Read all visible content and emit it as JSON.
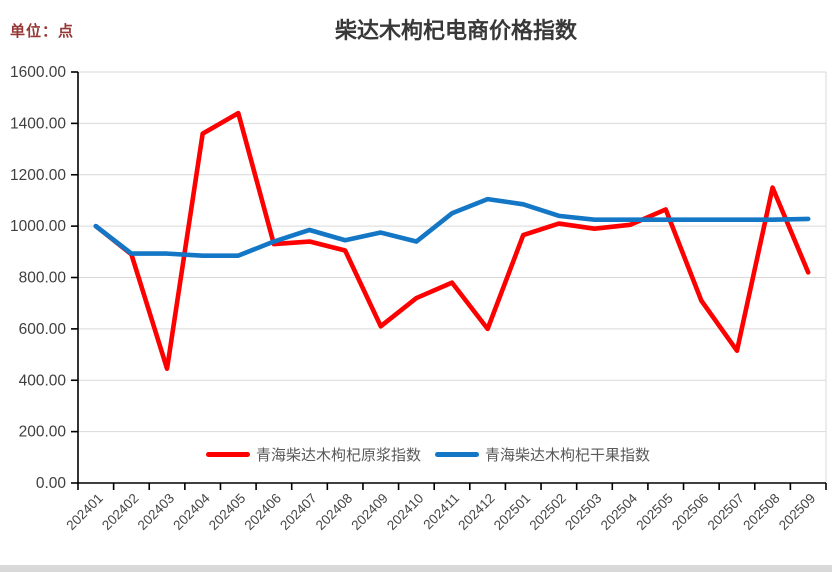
{
  "unit_label": "单位：点",
  "title": "柴达木枸杞电商价格指数",
  "chart_data": {
    "type": "line",
    "title": "柴达木枸杞电商价格指数",
    "unit": "点",
    "categories": [
      "202401",
      "202402",
      "202403",
      "202404",
      "202405",
      "202406",
      "202407",
      "202408",
      "202409",
      "202410",
      "202411",
      "202412",
      "202501",
      "202502",
      "202503",
      "202504",
      "202505",
      "202506",
      "202507",
      "202508",
      "202509"
    ],
    "series": [
      {
        "name": "青海柴达木枸杞原浆指数",
        "color": "#FE0000",
        "values": [
          1000,
          890,
          445,
          1360,
          1440,
          930,
          940,
          905,
          610,
          720,
          780,
          600,
          965,
          1010,
          990,
          1005,
          1065,
          710,
          515,
          1150,
          820
        ]
      },
      {
        "name": "青海柴达木枸杞干果指数",
        "color": "#1377C6",
        "values": [
          1000,
          893,
          893,
          885,
          885,
          940,
          985,
          945,
          975,
          940,
          1050,
          1105,
          1085,
          1040,
          1025,
          1025,
          1025,
          1025,
          1025,
          1025,
          1028
        ]
      }
    ],
    "ylim": [
      0,
      1600
    ],
    "y_tick_values": [
      1600,
      1400,
      1200,
      1000,
      800,
      600,
      400,
      200,
      0
    ],
    "y_tick_labels": [
      "1600.00",
      "1400.00",
      "1200.00",
      "1000.00",
      "800.00",
      "600.00",
      "400.00",
      "200.00",
      "0.00"
    ],
    "grid": true,
    "gridline_color": "#D9D9D9",
    "axis_color": "#000000",
    "tick_label_color": "#3F3F3F",
    "x_label_color": "#464646",
    "legend_position": "bottom-inside"
  }
}
